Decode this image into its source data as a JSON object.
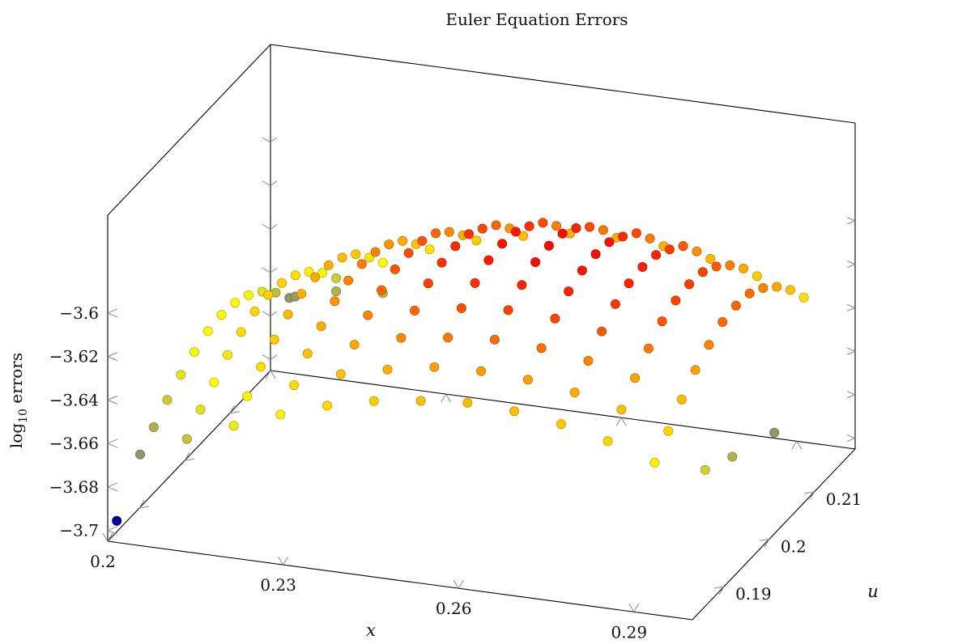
{
  "chart_data": {
    "type": "scatter",
    "title": "Euler Equation Errors",
    "xlabel": "x",
    "ylabel": "u",
    "zlabel_main": "log",
    "zlabel_sub": "10",
    "zlabel_tail": " errors",
    "xlim": [
      0.2,
      0.3
    ],
    "ylim": [
      0.183,
      0.219
    ],
    "zlim": [
      -3.705,
      -3.555
    ],
    "x_ticks": [
      0.2,
      0.23,
      0.26,
      0.29
    ],
    "x_tick_labels": [
      "0.2",
      "0.23",
      "0.26",
      "0.29"
    ],
    "y_ticks": [
      0.19,
      0.2,
      0.21
    ],
    "y_tick_labels": [
      "0.19",
      "0.2",
      "0.21"
    ],
    "z_ticks": [
      -3.7,
      -3.68,
      -3.66,
      -3.64,
      -3.62,
      -3.6
    ],
    "z_tick_labels": [
      "−3.7",
      "−3.68",
      "−3.66",
      "−3.64",
      "−3.62",
      "−3.6"
    ],
    "grid": false,
    "colormap": [
      "#00008b",
      "#808080",
      "#ffff00",
      "#ffa500",
      "#ff0000"
    ],
    "grid_x": [
      0.204,
      0.212,
      0.22,
      0.228,
      0.236,
      0.244,
      0.252,
      0.26,
      0.268,
      0.276,
      0.284,
      0.292
    ],
    "grid_u": [
      0.185,
      0.188,
      0.191,
      0.194,
      0.197,
      0.2,
      0.203,
      0.206,
      0.209,
      0.212,
      0.215,
      0.218
    ],
    "surface_z": [
      [
        -3.668,
        -3.662,
        -3.656,
        -3.651,
        -3.647,
        -3.644,
        -3.643,
        -3.644,
        -3.647,
        -3.652,
        -3.659,
        -3.668
      ],
      [
        -3.658,
        -3.651,
        -3.645,
        -3.639,
        -3.635,
        -3.632,
        -3.631,
        -3.632,
        -3.635,
        -3.64,
        -3.647,
        -3.656
      ],
      [
        -3.649,
        -3.642,
        -3.635,
        -3.629,
        -3.624,
        -3.621,
        -3.62,
        -3.621,
        -3.624,
        -3.629,
        -3.637,
        -3.646
      ],
      [
        -3.641,
        -3.634,
        -3.626,
        -3.62,
        -3.615,
        -3.612,
        -3.611,
        -3.612,
        -3.615,
        -3.62,
        -3.628,
        -3.637
      ],
      [
        -3.634,
        -3.626,
        -3.619,
        -3.612,
        -3.607,
        -3.604,
        -3.603,
        -3.604,
        -3.607,
        -3.613,
        -3.621,
        -3.63
      ],
      [
        -3.629,
        -3.621,
        -3.613,
        -3.607,
        -3.601,
        -3.598,
        -3.597,
        -3.598,
        -3.602,
        -3.607,
        -3.615,
        -3.625
      ],
      [
        -3.626,
        -3.617,
        -3.61,
        -3.603,
        -3.598,
        -3.594,
        -3.593,
        -3.594,
        -3.598,
        -3.603,
        -3.611,
        -3.621
      ],
      [
        -3.624,
        -3.616,
        -3.608,
        -3.601,
        -3.596,
        -3.592,
        -3.591,
        -3.592,
        -3.596,
        -3.602,
        -3.61,
        -3.62
      ],
      [
        -3.625,
        -3.617,
        -3.609,
        -3.602,
        -3.596,
        -3.593,
        -3.592,
        -3.593,
        -3.597,
        -3.602,
        -3.611,
        -3.621
      ],
      [
        -3.628,
        -3.62,
        -3.612,
        -3.605,
        -3.599,
        -3.596,
        -3.595,
        -3.596,
        -3.6,
        -3.605,
        -3.614,
        -3.624
      ],
      [
        -3.633,
        -3.625,
        -3.617,
        -3.61,
        -3.604,
        -3.601,
        -3.6,
        -3.601,
        -3.605,
        -3.611,
        -3.619,
        -3.629
      ],
      [
        -3.64,
        -3.632,
        -3.624,
        -3.617,
        -3.612,
        -3.608,
        -3.607,
        -3.608,
        -3.612,
        -3.618,
        -3.626,
        -3.636
      ]
    ],
    "outlier_points": [
      {
        "x": 0.2,
        "u": 0.185,
        "z": -3.7
      },
      {
        "x": 0.205,
        "u": 0.218,
        "z": -3.667
      },
      {
        "x": 0.212,
        "u": 0.218,
        "z": -3.662
      },
      {
        "x": 0.22,
        "u": 0.218,
        "z": -3.66
      },
      {
        "x": 0.297,
        "u": 0.205,
        "z": -3.668
      },
      {
        "x": 0.296,
        "u": 0.197,
        "z": -3.662
      },
      {
        "x": 0.296,
        "u": 0.191,
        "z": -3.655
      }
    ]
  }
}
